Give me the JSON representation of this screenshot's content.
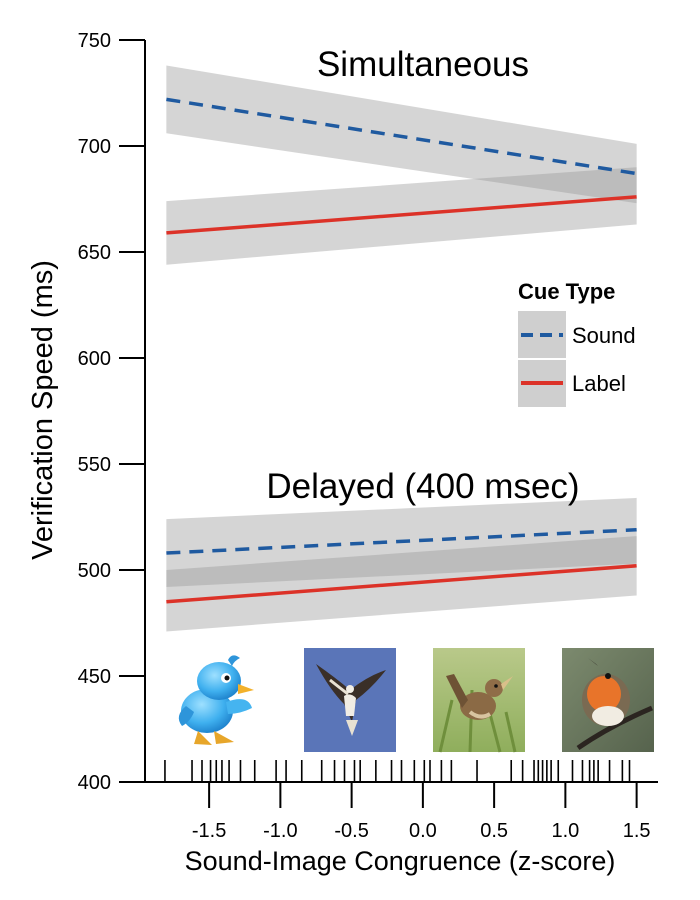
{
  "chart_data": {
    "type": "line",
    "title": "",
    "xlabel": "Sound-Image Congruence (z-score)",
    "ylabel": "Verification Speed (ms)",
    "xlim": [
      -1.95,
      1.65
    ],
    "ylim": [
      400,
      750
    ],
    "x_ticks": [
      -1.5,
      -1.0,
      -0.5,
      0.0,
      0.5,
      1.0,
      1.5
    ],
    "x_tick_labels": [
      "-1.5",
      "-1.0",
      "-0.5",
      "0.0",
      "0.5",
      "1.0",
      "1.5"
    ],
    "y_ticks": [
      400,
      450,
      500,
      550,
      600,
      650,
      700,
      750
    ],
    "y_tick_labels": [
      "400",
      "450",
      "500",
      "550",
      "600",
      "650",
      "700",
      "750"
    ],
    "grid": false,
    "legend": {
      "title": "Cue Type",
      "placement": "right",
      "entries": [
        {
          "name": "Sound",
          "color": "#1f5aa0",
          "style": "dashed"
        },
        {
          "name": "Label",
          "color": "#dc3228",
          "style": "solid"
        }
      ]
    },
    "panels": [
      {
        "label": "Simultaneous",
        "series": [
          {
            "name": "Sound",
            "x": [
              -1.8,
              1.5
            ],
            "y": [
              722,
              687
            ],
            "ci_lower": [
              706,
              673
            ],
            "ci_upper": [
              738,
              701
            ]
          },
          {
            "name": "Label",
            "x": [
              -1.8,
              1.5
            ],
            "y": [
              659,
              676
            ],
            "ci_lower": [
              644,
              663
            ],
            "ci_upper": [
              674,
              690
            ]
          }
        ]
      },
      {
        "label": "Delayed (400 msec)",
        "series": [
          {
            "name": "Sound",
            "x": [
              -1.8,
              1.5
            ],
            "y": [
              508,
              519
            ],
            "ci_lower": [
              492,
              503
            ],
            "ci_upper": [
              524,
              534
            ]
          },
          {
            "name": "Label",
            "x": [
              -1.8,
              1.5
            ],
            "y": [
              485,
              502
            ],
            "ci_lower": [
              471,
              488
            ],
            "ci_upper": [
              500,
              516
            ]
          }
        ]
      }
    ],
    "rug_x": [
      -1.81,
      -1.62,
      -1.55,
      -1.49,
      -1.45,
      -1.41,
      -1.36,
      -1.28,
      -1.18,
      -1.03,
      -0.96,
      -0.85,
      -0.71,
      -0.62,
      -0.55,
      -0.48,
      -0.44,
      -0.33,
      -0.22,
      -0.15,
      -0.06,
      0.01,
      0.05,
      0.13,
      0.2,
      0.38,
      0.62,
      0.7,
      0.78,
      0.81,
      0.84,
      0.87,
      0.9,
      0.95,
      1.05,
      1.12,
      1.17,
      1.2,
      1.23,
      1.31,
      1.4,
      1.45
    ]
  },
  "images": [
    {
      "name": "cartoon-bird-image",
      "x_from": -1.87,
      "x_to": -1.2,
      "y_from": 465,
      "y_to": 414
    },
    {
      "name": "osprey-image",
      "x_from": -0.85,
      "x_to": -0.2,
      "y_from": 464,
      "y_to": 414
    },
    {
      "name": "wren-image",
      "x_from": 0.05,
      "x_to": 0.72,
      "y_from": 464,
      "y_to": 414
    },
    {
      "name": "robin-image",
      "x_from": 0.96,
      "x_to": 1.63,
      "y_from": 464,
      "y_to": 414
    }
  ]
}
